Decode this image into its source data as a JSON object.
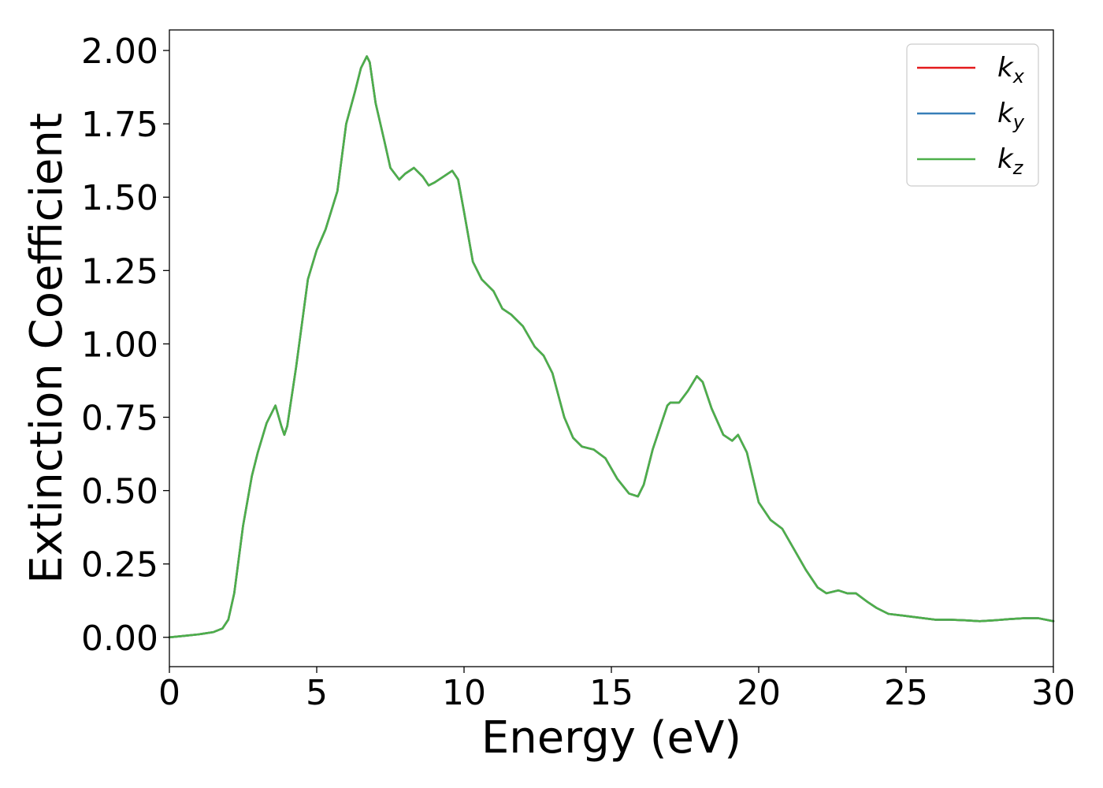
{
  "chart_data": {
    "type": "line",
    "title": "",
    "xlabel": "Energy (eV)",
    "ylabel": "Extinction Coefficient",
    "xlim": [
      0,
      30
    ],
    "ylim": [
      -0.1,
      2.07
    ],
    "grid": false,
    "legend_position": "top-right",
    "x_ticks": [
      {
        "value": 0,
        "label": "0"
      },
      {
        "value": 5,
        "label": "5"
      },
      {
        "value": 10,
        "label": "10"
      },
      {
        "value": 15,
        "label": "15"
      },
      {
        "value": 20,
        "label": "20"
      },
      {
        "value": 25,
        "label": "25"
      },
      {
        "value": 30,
        "label": "30"
      }
    ],
    "y_ticks": [
      {
        "value": 0.0,
        "label": "0.00"
      },
      {
        "value": 0.25,
        "label": "0.25"
      },
      {
        "value": 0.5,
        "label": "0.50"
      },
      {
        "value": 0.75,
        "label": "0.75"
      },
      {
        "value": 1.0,
        "label": "1.00"
      },
      {
        "value": 1.25,
        "label": "1.25"
      },
      {
        "value": 1.5,
        "label": "1.50"
      },
      {
        "value": 1.75,
        "label": "1.75"
      },
      {
        "value": 2.0,
        "label": "2.00"
      }
    ],
    "x": [
      0,
      0.5,
      1,
      1.5,
      1.8,
      2,
      2.2,
      2.5,
      2.8,
      3,
      3.3,
      3.6,
      3.8,
      3.9,
      4,
      4.3,
      4.7,
      5,
      5.3,
      5.7,
      6,
      6.3,
      6.5,
      6.7,
      6.8,
      7,
      7.3,
      7.5,
      7.8,
      8,
      8.3,
      8.6,
      8.8,
      9,
      9.3,
      9.6,
      9.8,
      10,
      10.3,
      10.6,
      11,
      11.3,
      11.6,
      12,
      12.4,
      12.7,
      13,
      13.4,
      13.7,
      14,
      14.4,
      14.8,
      15.2,
      15.6,
      15.9,
      16.1,
      16.4,
      16.7,
      16.9,
      17,
      17.3,
      17.6,
      17.9,
      18.1,
      18.4,
      18.8,
      19.1,
      19.3,
      19.6,
      20,
      20.4,
      20.8,
      21.2,
      21.6,
      22,
      22.3,
      22.7,
      23,
      23.3,
      23.7,
      24,
      24.4,
      24.8,
      25.2,
      25.6,
      26,
      26.5,
      27,
      27.5,
      28,
      28.5,
      29,
      29.5,
      30
    ],
    "series": [
      {
        "name": "k_x",
        "color": "#e41a1c",
        "values": [
          0.0,
          0.005,
          0.01,
          0.018,
          0.03,
          0.06,
          0.15,
          0.38,
          0.55,
          0.63,
          0.73,
          0.79,
          0.72,
          0.69,
          0.72,
          0.92,
          1.22,
          1.32,
          1.39,
          1.52,
          1.75,
          1.86,
          1.94,
          1.98,
          1.96,
          1.82,
          1.69,
          1.6,
          1.56,
          1.58,
          1.6,
          1.57,
          1.54,
          1.55,
          1.57,
          1.59,
          1.56,
          1.45,
          1.28,
          1.22,
          1.18,
          1.12,
          1.1,
          1.06,
          0.99,
          0.96,
          0.9,
          0.75,
          0.68,
          0.65,
          0.64,
          0.61,
          0.54,
          0.49,
          0.48,
          0.52,
          0.64,
          0.73,
          0.79,
          0.8,
          0.8,
          0.84,
          0.89,
          0.87,
          0.78,
          0.69,
          0.67,
          0.69,
          0.63,
          0.46,
          0.4,
          0.37,
          0.3,
          0.23,
          0.17,
          0.15,
          0.16,
          0.15,
          0.15,
          0.12,
          0.1,
          0.08,
          0.075,
          0.07,
          0.065,
          0.06,
          0.06,
          0.058,
          0.055,
          0.058,
          0.062,
          0.065,
          0.065,
          0.055
        ]
      },
      {
        "name": "k_y",
        "color": "#377eb8",
        "values": [
          0.0,
          0.005,
          0.01,
          0.018,
          0.03,
          0.06,
          0.15,
          0.38,
          0.55,
          0.63,
          0.73,
          0.79,
          0.72,
          0.69,
          0.72,
          0.92,
          1.22,
          1.32,
          1.39,
          1.52,
          1.75,
          1.86,
          1.94,
          1.98,
          1.96,
          1.82,
          1.69,
          1.6,
          1.56,
          1.58,
          1.6,
          1.57,
          1.54,
          1.55,
          1.57,
          1.59,
          1.56,
          1.45,
          1.28,
          1.22,
          1.18,
          1.12,
          1.1,
          1.06,
          0.99,
          0.96,
          0.9,
          0.75,
          0.68,
          0.65,
          0.64,
          0.61,
          0.54,
          0.49,
          0.48,
          0.52,
          0.64,
          0.73,
          0.79,
          0.8,
          0.8,
          0.84,
          0.89,
          0.87,
          0.78,
          0.69,
          0.67,
          0.69,
          0.63,
          0.46,
          0.4,
          0.37,
          0.3,
          0.23,
          0.17,
          0.15,
          0.16,
          0.15,
          0.15,
          0.12,
          0.1,
          0.08,
          0.075,
          0.07,
          0.065,
          0.06,
          0.06,
          0.058,
          0.055,
          0.058,
          0.062,
          0.065,
          0.065,
          0.055
        ]
      },
      {
        "name": "k_z",
        "color": "#4daf4a",
        "values": [
          0.0,
          0.005,
          0.01,
          0.018,
          0.03,
          0.06,
          0.15,
          0.38,
          0.55,
          0.63,
          0.73,
          0.79,
          0.72,
          0.69,
          0.72,
          0.92,
          1.22,
          1.32,
          1.39,
          1.52,
          1.75,
          1.86,
          1.94,
          1.98,
          1.96,
          1.82,
          1.69,
          1.6,
          1.56,
          1.58,
          1.6,
          1.57,
          1.54,
          1.55,
          1.57,
          1.59,
          1.56,
          1.45,
          1.28,
          1.22,
          1.18,
          1.12,
          1.1,
          1.06,
          0.99,
          0.96,
          0.9,
          0.75,
          0.68,
          0.65,
          0.64,
          0.61,
          0.54,
          0.49,
          0.48,
          0.52,
          0.64,
          0.73,
          0.79,
          0.8,
          0.8,
          0.84,
          0.89,
          0.87,
          0.78,
          0.69,
          0.67,
          0.69,
          0.63,
          0.46,
          0.4,
          0.37,
          0.3,
          0.23,
          0.17,
          0.15,
          0.16,
          0.15,
          0.15,
          0.12,
          0.1,
          0.08,
          0.075,
          0.07,
          0.065,
          0.06,
          0.06,
          0.058,
          0.055,
          0.058,
          0.062,
          0.065,
          0.065,
          0.055
        ]
      }
    ],
    "legend": [
      {
        "main": "k",
        "sub": "x"
      },
      {
        "main": "k",
        "sub": "y"
      },
      {
        "main": "k",
        "sub": "z"
      }
    ]
  }
}
